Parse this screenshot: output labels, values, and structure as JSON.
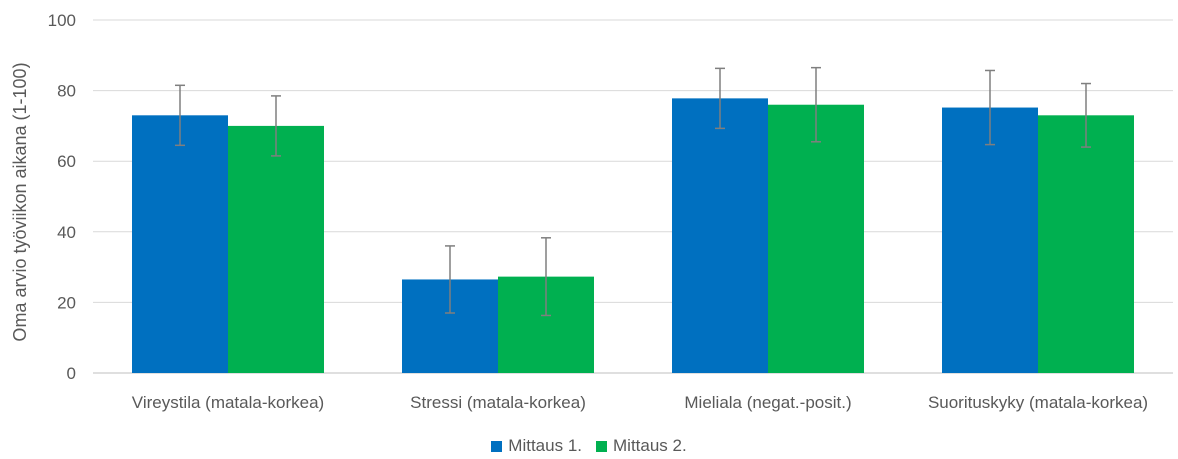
{
  "chart_data": {
    "type": "bar",
    "categories": [
      "Vireystila (matala-korkea)",
      "Stressi (matala-korkea)",
      "Mieliala (negat.-posit.)",
      "Suorituskyky (matala-korkea)"
    ],
    "series": [
      {
        "name": "Mittaus 1.",
        "color": "#0070C0",
        "values": [
          73,
          26.5,
          77.8,
          75.2
        ],
        "error": [
          8.5,
          9.5,
          8.5,
          10.5
        ]
      },
      {
        "name": "Mittaus 2.",
        "color": "#00B050",
        "values": [
          70,
          27.3,
          76,
          73
        ],
        "error": [
          8.5,
          11,
          10.5,
          9
        ]
      }
    ],
    "ylabel": "Oma arvio työviikon aikana (1-100)",
    "xlabel": "",
    "ylim": [
      0,
      100
    ],
    "yticks": [
      0,
      20,
      40,
      60,
      80,
      100
    ],
    "grid": true,
    "legend_position": "bottom"
  }
}
